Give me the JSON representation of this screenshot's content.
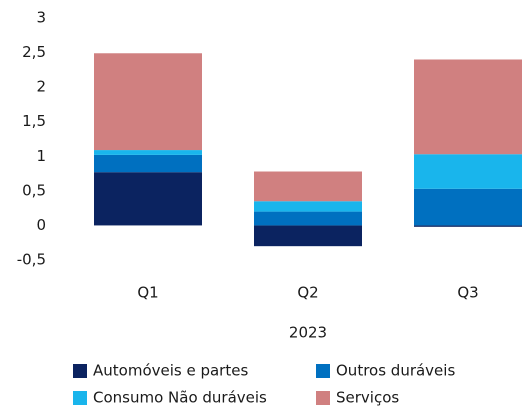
{
  "chart_data": {
    "type": "stacked_bar",
    "categories": [
      "Q1",
      "Q2",
      "Q3"
    ],
    "xlabel": "2023",
    "series": [
      {
        "name": "Automóveis e partes",
        "color": "#0b2360",
        "values": [
          0.77,
          -0.3,
          -0.02
        ]
      },
      {
        "name": "Outros duráveis",
        "color": "#0070c0",
        "values": [
          0.25,
          0.2,
          0.53
        ]
      },
      {
        "name": "Consumo Não  duráveis",
        "color": "#19b5ec",
        "values": [
          0.07,
          0.15,
          0.5
        ]
      },
      {
        "name": "Serviços",
        "color": "#d08080",
        "values": [
          1.4,
          0.43,
          1.37
        ]
      }
    ],
    "ylim": [
      -0.5,
      3
    ],
    "yticks": [
      {
        "value": -0.5,
        "label": "-0,5"
      },
      0,
      {
        "value": 0.5,
        "label": "0,5"
      },
      1,
      {
        "value": 1.5,
        "label": "1,5"
      },
      2,
      {
        "value": 2.5,
        "label": "2,5"
      },
      3
    ],
    "grid": false
  }
}
